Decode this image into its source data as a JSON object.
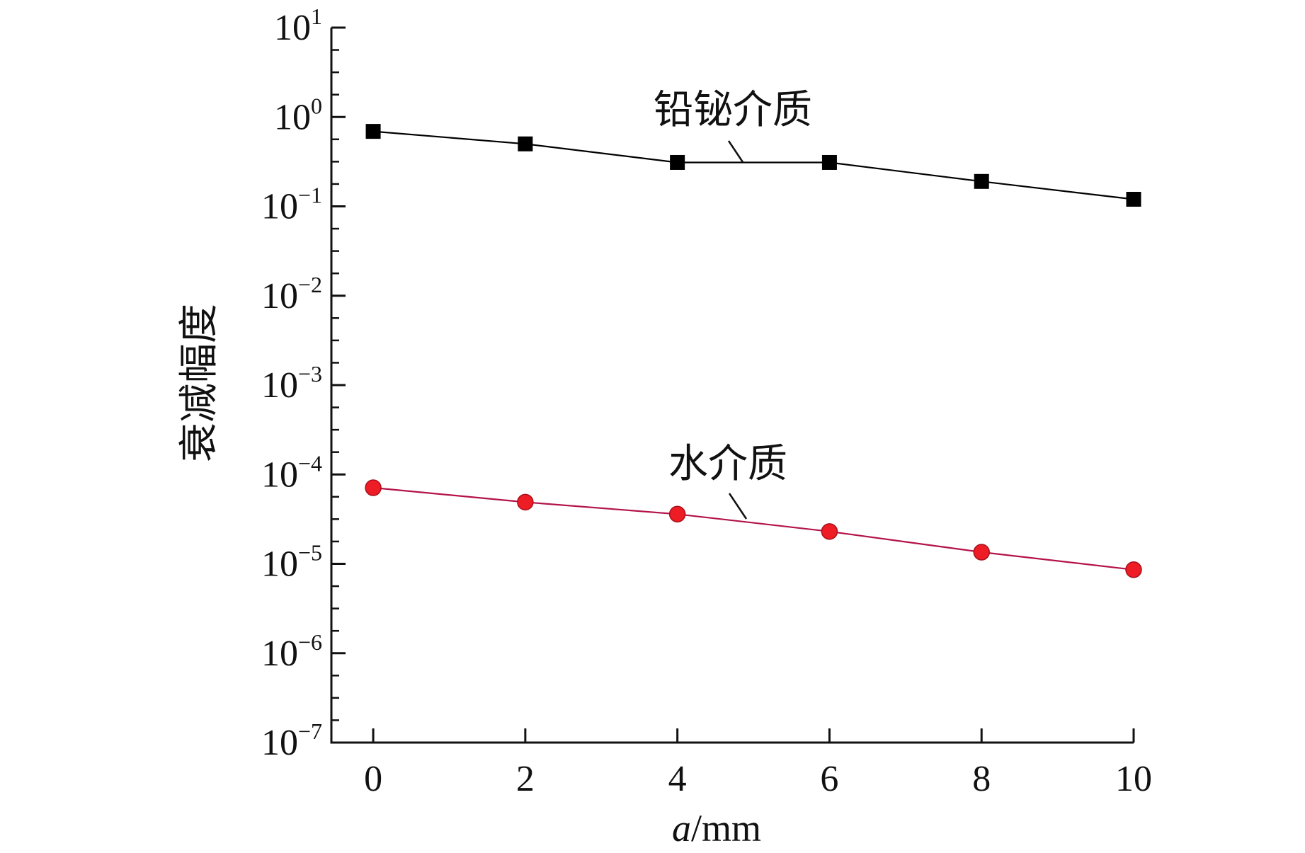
{
  "chart_data": {
    "type": "line",
    "title": "",
    "xlabel_symbol": "a",
    "xlabel_unit": "/mm",
    "ylabel": "衰减幅度",
    "xlim": [
      -0.55,
      10
    ],
    "x_ticks": [
      0,
      2,
      4,
      6,
      8,
      10
    ],
    "x_tick_labels": [
      "0",
      "2",
      "4",
      "6",
      "8",
      "10"
    ],
    "y_scale": "log",
    "ylim": [
      1e-07,
      10
    ],
    "y_ticks": [
      {
        "value": 10,
        "base": "10",
        "exp": "1"
      },
      {
        "value": 1,
        "base": "10",
        "exp": "0"
      },
      {
        "value": 0.1,
        "base": "10",
        "exp": "−1"
      },
      {
        "value": 0.01,
        "base": "10",
        "exp": "−2"
      },
      {
        "value": 0.001,
        "base": "10",
        "exp": "−3"
      },
      {
        "value": 0.0001,
        "base": "10",
        "exp": "−4"
      },
      {
        "value": 1e-05,
        "base": "10",
        "exp": "−5"
      },
      {
        "value": 1e-06,
        "base": "10",
        "exp": "−6"
      },
      {
        "value": 1e-07,
        "base": "10",
        "exp": "−7"
      }
    ],
    "grid": false,
    "legend": "none",
    "series": [
      {
        "name": "铅铋介质",
        "marker": "square",
        "color": "#000000",
        "line_color": "#000000",
        "x": [
          0,
          2,
          4,
          6,
          8,
          10
        ],
        "y": [
          0.69,
          0.5,
          0.31,
          0.31,
          0.19,
          0.12
        ]
      },
      {
        "name": "水介质",
        "marker": "circle",
        "color": "#ee1c24",
        "line_color": "#b3124a",
        "x": [
          0,
          2,
          4,
          6,
          8,
          10
        ],
        "y": [
          7.1e-05,
          4.9e-05,
          3.6e-05,
          2.3e-05,
          1.35e-05,
          8.6e-06
        ]
      }
    ]
  }
}
